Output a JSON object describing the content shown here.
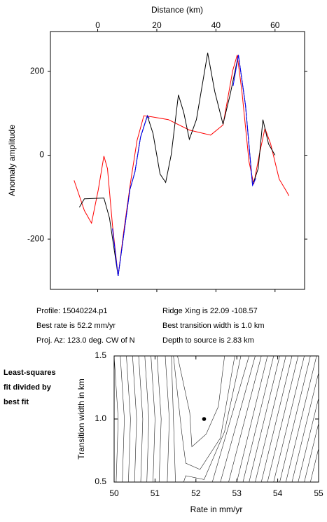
{
  "info": {
    "profile": "Profile: 15040224.p1",
    "ridge": "Ridge Xing is 22.09 -108.57",
    "rate": "Best rate is 52.2 mm/yr",
    "width": "Best transition width is 1.0 km",
    "azimuth": "Proj. Az: 123.0 deg. CW of N",
    "depth": "Depth to source is   2.83 km"
  },
  "chart_data": [
    {
      "type": "line",
      "xlabel": "Distance (km)",
      "ylabel": "Anomaly amplitude",
      "xlim": [
        -16,
        70
      ],
      "ylim": [
        -320,
        295
      ],
      "xticks": [
        0,
        20,
        40,
        60
      ],
      "yticks": [
        -200,
        0,
        200
      ],
      "series": [
        {
          "color": "#ff0000",
          "x": [
            -8,
            -4.5,
            -2.1,
            0.2,
            2.1,
            3.3,
            5,
            6.9,
            8.8,
            11.1,
            13.3,
            15.6,
            18,
            23.9,
            31,
            38.2,
            42.4,
            45.7,
            47.2,
            48.8,
            51.2,
            52.8,
            54.7,
            56.6,
            58.5,
            61.4,
            64.2,
            64.7
          ],
          "values": [
            -60,
            -132,
            -162,
            -82,
            -2,
            -32,
            -166,
            -288,
            -182,
            -65,
            35,
            94,
            92,
            85,
            60,
            48,
            72,
            202,
            239,
            152,
            -15,
            -69,
            2,
            64,
            27,
            -57,
            -90,
            -97
          ]
        },
        {
          "color": "#000000",
          "x": [
            -6.2,
            -4.5,
            2.1,
            4,
            6.9,
            8.8,
            10.9,
            12.6,
            14.5,
            16.8,
            18.7,
            21.1,
            23,
            24.9,
            27.3,
            29.1,
            31,
            33.4,
            37.2,
            39.6,
            42.4,
            44.8,
            47.6,
            50,
            52.4,
            54.3,
            55.9,
            57.8,
            60
          ],
          "values": [
            -124,
            -104,
            -102,
            -150,
            -288,
            -190,
            -82,
            -40,
            43,
            94,
            52,
            -45,
            -65,
            2,
            144,
            102,
            38,
            85,
            244,
            152,
            74,
            144,
            239,
            119,
            -72,
            -32,
            85,
            27,
            0
          ]
        },
        {
          "color": "#0000ff",
          "x": [
            5,
            6.9,
            8.8,
            10.9,
            12.6,
            14.5,
            16.8,
            17.5,
            30,
            45.8,
            47.6,
            50,
            52.4,
            53.5
          ],
          "values": [
            -175,
            -288,
            -190,
            -82,
            -40,
            43,
            94,
            88,
            null,
            165,
            239,
            119,
            -72,
            -55
          ]
        }
      ]
    },
    {
      "type": "contour",
      "xlabel": "Rate in mm/yr",
      "ylabel": "Transition width in km",
      "annotation": [
        "Least-squares",
        "fit divided by",
        "best fit"
      ],
      "xlim": [
        50,
        55
      ],
      "ylim": [
        0.5,
        1.5
      ],
      "xticks": [
        50,
        51,
        52,
        53,
        54,
        55
      ],
      "yticks": [
        0.5,
        {
          "value": 1,
          "label": "1.0"
        },
        1.5
      ],
      "best_fit": {
        "x": 52.2,
        "y": 1.0
      },
      "contours": [
        {
          "x": [
            50.05,
            50.1,
            50.0
          ],
          "y": [
            0.5,
            1.0,
            1.5
          ]
        },
        {
          "x": [
            50.2,
            50.25,
            50.15
          ],
          "y": [
            0.5,
            1.0,
            1.5
          ]
        },
        {
          "x": [
            50.35,
            50.4,
            50.3
          ],
          "y": [
            0.5,
            1.0,
            1.5
          ]
        },
        {
          "x": [
            50.5,
            50.55,
            50.45
          ],
          "y": [
            0.5,
            1.0,
            1.5
          ]
        },
        {
          "x": [
            50.65,
            50.7,
            50.6
          ],
          "y": [
            0.5,
            1.0,
            1.5
          ]
        },
        {
          "x": [
            50.8,
            50.85,
            50.75
          ],
          "y": [
            0.5,
            1.0,
            1.5
          ]
        },
        {
          "x": [
            50.95,
            51.0,
            50.9
          ],
          "y": [
            0.5,
            1.0,
            1.5
          ]
        },
        {
          "x": [
            51.1,
            51.15,
            51.05
          ],
          "y": [
            0.5,
            1.0,
            1.5
          ]
        },
        {
          "x": [
            51.3,
            51.35,
            51.25
          ],
          "y": [
            0.5,
            1.0,
            1.5
          ]
        },
        {
          "x": [
            51.5,
            51.45,
            51.4
          ],
          "y": [
            0.5,
            1.0,
            1.5
          ]
        },
        {
          "x": [
            51.55,
            51.85,
            51.9,
            52.25,
            52.55,
            52.7
          ],
          "y": [
            1.5,
            1.05,
            0.78,
            0.88,
            1.1,
            1.5
          ]
        },
        {
          "x": [
            51.45,
            51.65,
            51.75,
            52.1,
            52.6,
            52.95
          ],
          "y": [
            1.5,
            0.9,
            0.65,
            0.6,
            0.85,
            1.5
          ]
        },
        {
          "x": [
            51.7,
            51.75,
            52.2,
            52.7,
            53.1
          ],
          "y": [
            0.5,
            0.55,
            0.52,
            0.9,
            1.5
          ]
        },
        {
          "x": [
            52.4,
            53.3
          ],
          "y": [
            0.5,
            1.5
          ]
        },
        {
          "x": [
            52.6,
            53.45
          ],
          "y": [
            0.5,
            1.5
          ]
        },
        {
          "x": [
            52.8,
            53.6
          ],
          "y": [
            0.5,
            1.5
          ]
        },
        {
          "x": [
            53.0,
            53.75
          ],
          "y": [
            0.5,
            1.5
          ]
        },
        {
          "x": [
            53.15,
            53.9
          ],
          "y": [
            0.5,
            1.5
          ]
        },
        {
          "x": [
            53.3,
            54.05
          ],
          "y": [
            0.5,
            1.5
          ]
        },
        {
          "x": [
            53.45,
            54.2
          ],
          "y": [
            0.5,
            1.5
          ]
        },
        {
          "x": [
            53.6,
            54.35
          ],
          "y": [
            0.5,
            1.5
          ]
        },
        {
          "x": [
            53.75,
            54.5
          ],
          "y": [
            0.5,
            1.5
          ]
        },
        {
          "x": [
            53.9,
            54.65
          ],
          "y": [
            0.5,
            1.5
          ]
        },
        {
          "x": [
            54.05,
            54.8
          ],
          "y": [
            0.5,
            1.5
          ]
        },
        {
          "x": [
            54.2,
            54.95
          ],
          "y": [
            0.5,
            1.5
          ]
        },
        {
          "x": [
            54.35,
            55.1
          ],
          "y": [
            0.5,
            1.5
          ]
        },
        {
          "x": [
            54.5,
            55.25
          ],
          "y": [
            0.5,
            1.5
          ]
        },
        {
          "x": [
            54.65,
            55.4
          ],
          "y": [
            0.5,
            1.5
          ]
        },
        {
          "x": [
            54.8,
            55.55
          ],
          "y": [
            0.5,
            1.5
          ]
        }
      ]
    }
  ]
}
